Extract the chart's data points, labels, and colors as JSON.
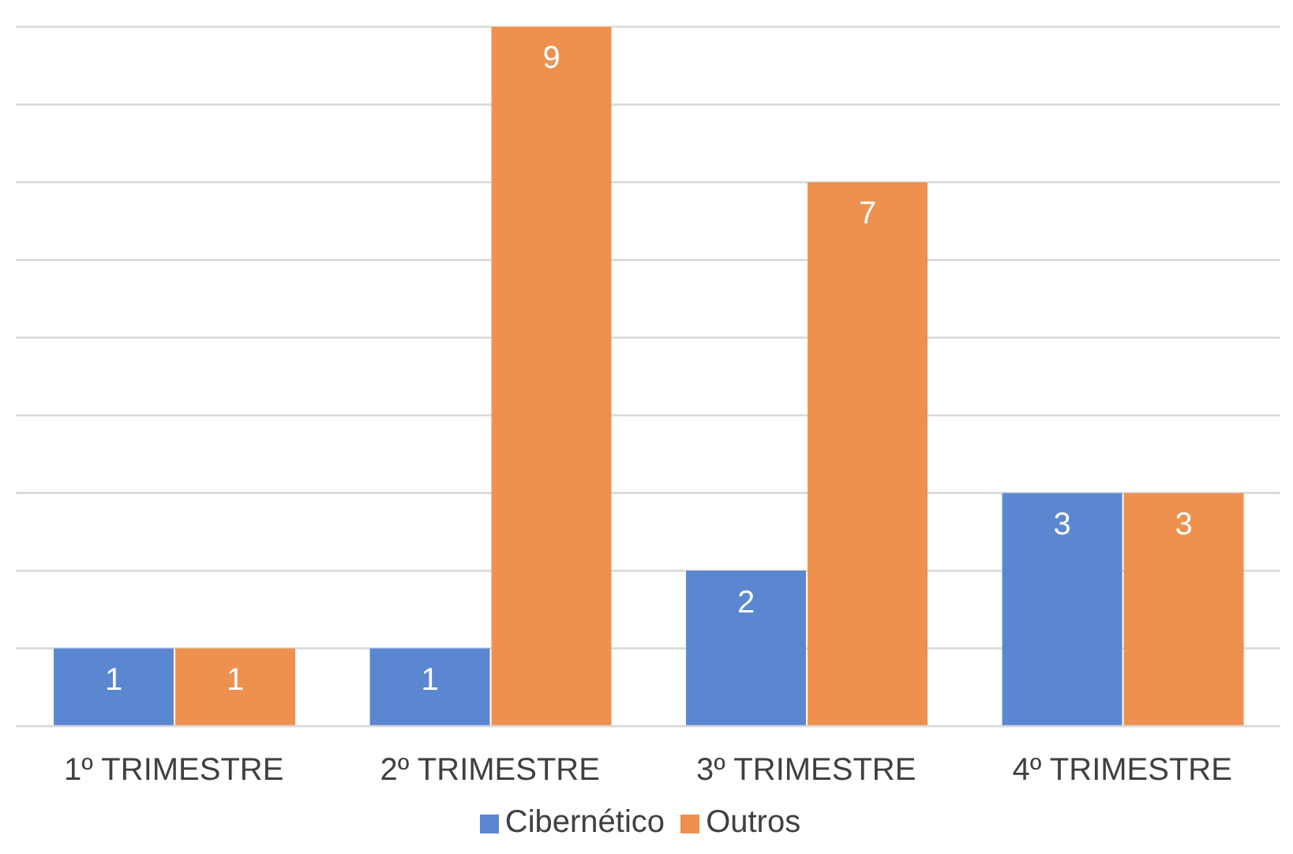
{
  "chart_data": {
    "type": "bar",
    "categories": [
      "1º TRIMESTRE",
      "2º TRIMESTRE",
      "3º TRIMESTRE",
      "4º TRIMESTRE"
    ],
    "series": [
      {
        "name": "Cibernético",
        "color": "#5b87d0",
        "values": [
          1,
          1,
          2,
          3
        ]
      },
      {
        "name": "Outros",
        "color": "#ee914f",
        "values": [
          1,
          9,
          7,
          3
        ]
      }
    ],
    "ylim": [
      0,
      9
    ],
    "yticks": [
      {
        "value": 0,
        "label": null
      },
      {
        "value": 1,
        "label": null
      },
      {
        "value": 2,
        "label": null
      },
      {
        "value": 3,
        "label": null
      },
      {
        "value": 4,
        "label": null
      },
      {
        "value": 5,
        "label": null
      },
      {
        "value": 6,
        "label": null
      },
      {
        "value": 7,
        "label": null
      },
      {
        "value": 8,
        "label": null
      },
      {
        "value": 9,
        "label": null
      }
    ],
    "grid": "y",
    "legend": "bottom",
    "data_labels": true,
    "tick_labels": "x"
  }
}
